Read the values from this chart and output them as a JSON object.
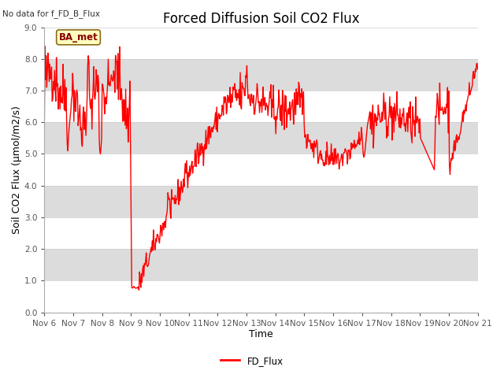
{
  "title": "Forced Diffusion Soil CO2 Flux",
  "top_left_text": "No data for f_FD_B_Flux",
  "xlabel": "Time",
  "ylabel": "Soil CO2 Flux (μmol/m2/s)",
  "ylim": [
    0.0,
    9.0
  ],
  "yticks": [
    0.0,
    1.0,
    2.0,
    3.0,
    4.0,
    5.0,
    6.0,
    7.0,
    8.0,
    9.0
  ],
  "xtick_labels": [
    "Nov 6",
    "Nov 7",
    "Nov 8",
    "Nov 9",
    "Nov 10",
    "Nov 11",
    "Nov 12",
    "Nov 13",
    "Nov 14",
    "Nov 15",
    "Nov 16",
    "Nov 17",
    "Nov 18",
    "Nov 19",
    "Nov 20",
    "Nov 21"
  ],
  "line_color": "#FF0000",
  "line_width": 1.0,
  "legend_label": "FD_Flux",
  "ba_met_box_color": "#FFFFC0",
  "ba_met_border_color": "#8B6914",
  "ba_met_text": "BA_met",
  "bg_color": "#FFFFFF",
  "plot_bg_color": "#FFFFFF",
  "band_color": "#DCDCDC",
  "title_fontsize": 12,
  "axis_label_fontsize": 9,
  "tick_fontsize": 7.5
}
